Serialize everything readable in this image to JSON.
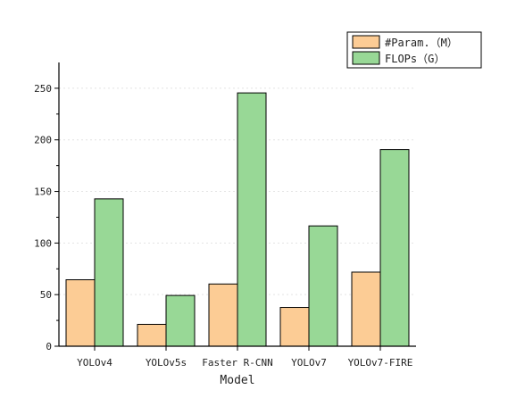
{
  "chart_data": {
    "type": "bar",
    "categories": [
      "YOLOv4",
      "YOLOv5s",
      "Faster R-CNN",
      "YOLOv7",
      "YOLOv7-FIRE"
    ],
    "series": [
      {
        "name": "#Param.（M）",
        "values": [
          64.4,
          21.2,
          60.3,
          37.6,
          71.8
        ],
        "color": "#fccc95"
      },
      {
        "name": "FLOPs（G）",
        "values": [
          142.8,
          49.2,
          245.5,
          116.6,
          190.6
        ],
        "color": "#98d896"
      }
    ],
    "title": "",
    "xlabel": "Model",
    "ylabel": "",
    "ylim": [
      0,
      275
    ],
    "yticks": [
      0,
      50,
      100,
      150,
      200,
      250
    ],
    "grid": true,
    "legend_position": "top-right"
  }
}
